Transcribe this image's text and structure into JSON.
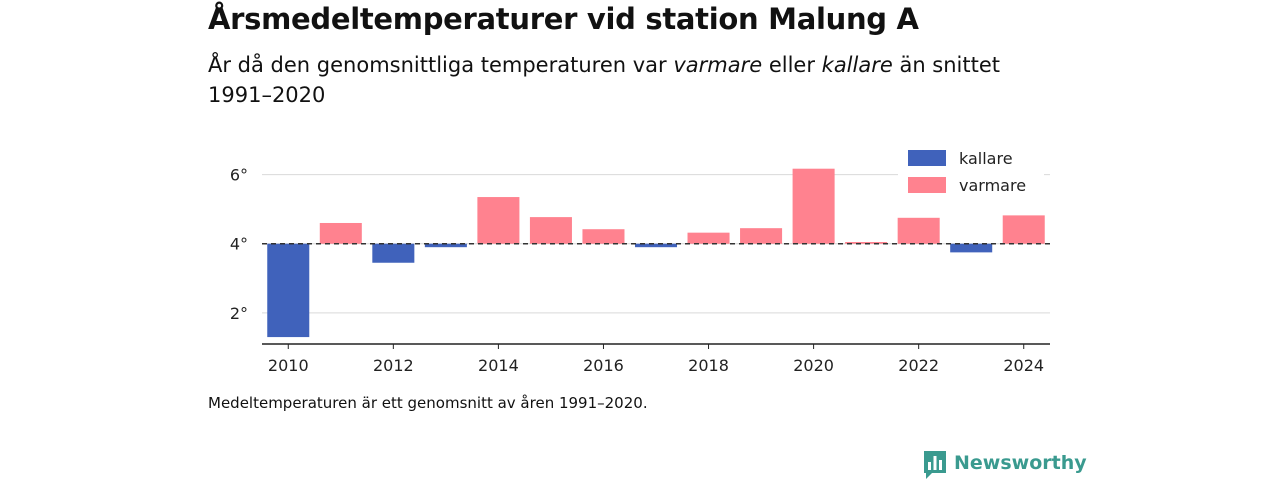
{
  "header": {
    "title": "Årsmedeltemperaturer vid station Malung A",
    "subtitle_parts": [
      "År då den genomsnittliga temperaturen var ",
      "varmare",
      " eller ",
      "kallare",
      " än snittet 1991–2020"
    ]
  },
  "footer": {
    "note": "Medeltemperaturen är ett genomsnitt av åren 1991–2020.",
    "brand": "Newsworthy",
    "brand_icon": "bar-chart-speech-bubble-icon",
    "brand_color": "#3a9a8f"
  },
  "chart_data": {
    "type": "bar",
    "x": [
      2010,
      2011,
      2012,
      2013,
      2014,
      2015,
      2016,
      2017,
      2018,
      2019,
      2020,
      2021,
      2022,
      2023,
      2024
    ],
    "values": [
      1.3,
      4.6,
      3.45,
      3.9,
      5.35,
      4.77,
      4.42,
      3.9,
      4.32,
      4.45,
      6.17,
      4.05,
      4.75,
      3.75,
      4.82
    ],
    "baseline": 4,
    "baseline_style": "dashed",
    "x_ticks": [
      2010,
      2012,
      2014,
      2016,
      2018,
      2020,
      2022,
      2024
    ],
    "x_tick_labels": [
      "2010",
      "2012",
      "2014",
      "2016",
      "2018",
      "2020",
      "2022",
      "2024"
    ],
    "y_ticks": [
      2,
      4,
      6
    ],
    "y_tick_labels": [
      "2°",
      "4°",
      "6°"
    ],
    "ylim": [
      1.1,
      7
    ],
    "grid": "horizontal",
    "legend": {
      "position": "top-right",
      "items": [
        {
          "label": "kallare",
          "color": "#4062bb"
        },
        {
          "label": "varmare",
          "color": "#ff828f"
        }
      ]
    },
    "colors": {
      "below": "#4062bb",
      "above": "#ff828f"
    }
  }
}
